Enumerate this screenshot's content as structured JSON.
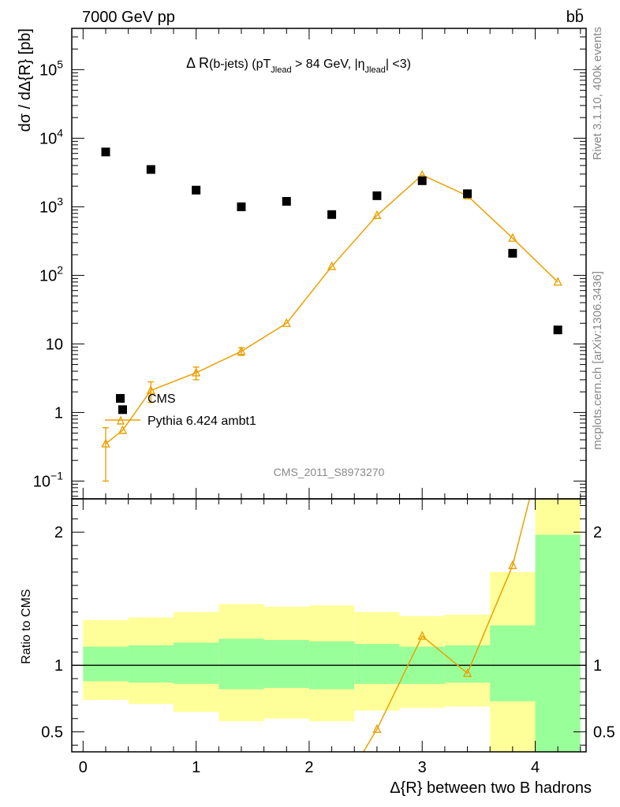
{
  "header": {
    "energy_label": "7000 GeV pp",
    "process_label": "bb̄"
  },
  "side_labels": {
    "rivet": "Rivet 3.1.10,  400k events",
    "mcplots": "mcplots.cern.ch [arXiv:1306.3436]"
  },
  "watermark": "CMS_2011_S8973270",
  "colors": {
    "data": "#000000",
    "mc": "#eba000",
    "band_inner": "#99ff99",
    "band_outer": "#ffff99"
  },
  "chart_data": [
    {
      "type": "scatter",
      "panel": "main",
      "title_parts": {
        "main": "Δ R",
        "paren": "(b-jets) (pT",
        "sub1": "Jlead",
        "mid": " >  84 GeV, |η",
        "sub2": "Jlead",
        "end": "| <3)"
      },
      "ylabel": "dσ / dΔ{R} [pb]",
      "yscale": "log",
      "xlim": [
        -0.1,
        4.45
      ],
      "ylim": [
        0.055,
        400000
      ],
      "y_tick_labels": [
        "10^-1",
        "1",
        "10",
        "10^2",
        "10^3",
        "10^4",
        "10^5"
      ],
      "legend_position": "lower-left",
      "series": [
        {
          "name": "CMS",
          "x": [
            0.2,
            0.35,
            0.6,
            1.0,
            1.4,
            1.8,
            2.2,
            2.6,
            3.0,
            3.4,
            3.8,
            4.2
          ],
          "y": [
            6300,
            1.1,
            3500,
            1750,
            1000,
            1200,
            770,
            1450,
            2400,
            1550,
            210,
            16
          ]
        },
        {
          "name": "Pythia 6.424 ambt1",
          "x": [
            0.2,
            0.35,
            0.6,
            1.0,
            1.4,
            1.8,
            2.2,
            2.6,
            3.0,
            3.4,
            3.8,
            4.2
          ],
          "y": [
            0.35,
            0.55,
            2.1,
            3.8,
            7.8,
            20,
            135,
            750,
            2900,
            1450,
            350,
            80
          ],
          "y_err_low": [
            0.25,
            0,
            0.7,
            0.8,
            1.0,
            0,
            0,
            0,
            0,
            0,
            0,
            0
          ],
          "y_err_high": [
            0.25,
            0,
            0.7,
            0.8,
            1.0,
            0,
            0,
            0,
            0,
            0,
            0,
            0
          ]
        }
      ]
    },
    {
      "type": "line",
      "panel": "ratio",
      "ylabel": "Ratio to CMS",
      "xlabel": "Δ{R} between two B hadrons",
      "xlim": [
        -0.1,
        4.45
      ],
      "ylim": [
        0.35,
        2.25
      ],
      "x_ticks": [
        0,
        1,
        2,
        3,
        4
      ],
      "y_ticks": [
        0.5,
        1,
        2
      ],
      "reference_line": 1,
      "bands": {
        "edges": [
          0,
          0.4,
          0.8,
          1.2,
          1.6,
          2.0,
          2.4,
          2.8,
          3.2,
          3.6,
          4.0,
          4.4
        ],
        "inner_low": [
          0.88,
          0.87,
          0.86,
          0.82,
          0.83,
          0.82,
          0.86,
          0.86,
          0.87,
          0.73,
          0.35
        ],
        "inner_high": [
          1.14,
          1.15,
          1.17,
          1.2,
          1.19,
          1.18,
          1.16,
          1.14,
          1.15,
          1.3,
          1.98
        ],
        "outer_low": [
          0.74,
          0.71,
          0.65,
          0.58,
          0.6,
          0.58,
          0.66,
          0.68,
          0.69,
          0.35,
          0.35
        ],
        "outer_high": [
          1.34,
          1.36,
          1.4,
          1.46,
          1.44,
          1.45,
          1.4,
          1.37,
          1.38,
          1.7,
          2.25
        ]
      },
      "series": [
        {
          "name": "Pythia 6.424 ambt1",
          "x": [
            2.48,
            2.6,
            3.0,
            3.4,
            3.8,
            3.95
          ],
          "y": [
            0.35,
            0.52,
            1.22,
            0.94,
            1.75,
            2.25
          ],
          "markers": [
            false,
            true,
            true,
            true,
            true,
            false
          ]
        }
      ]
    }
  ]
}
